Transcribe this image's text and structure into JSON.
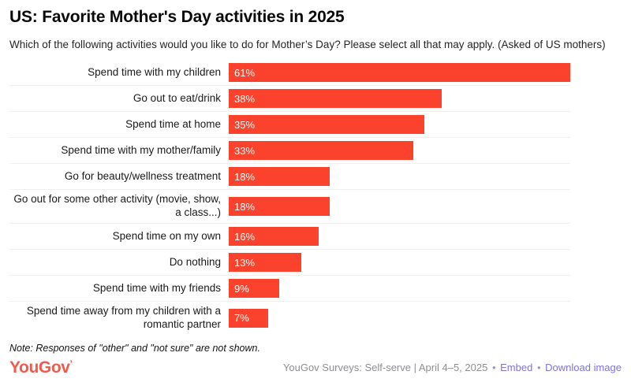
{
  "title": "US: Favorite Mother's Day activities in 2025",
  "subtitle": "Which of the following activities would you like to do for Mother’s Day? Please select all that may apply. (Asked of US mothers)",
  "note": "Note: Responses of \"other\" and \"not sure\" are not shown.",
  "footer": {
    "logo": "YouGov",
    "logo_tick": "’",
    "source_text": "YouGov Surveys: Self-serve | April 4–5, 2025",
    "bullet": "•",
    "links": [
      {
        "label": "Embed"
      },
      {
        "label": "Download image"
      }
    ]
  },
  "colors": {
    "bar": "#fb422c",
    "logo": "#f15b4b",
    "link": "#7d74e0",
    "separator": "#f0f0f0",
    "value_text": "#ffffff",
    "footer_text": "#8e8e93"
  },
  "chart_data": {
    "type": "bar",
    "orientation": "horizontal",
    "title": "US: Favorite Mother's Day activities in 2025",
    "xlabel": "",
    "ylabel": "",
    "xlim": [
      0,
      61
    ],
    "grid": false,
    "legend": "none",
    "value_suffix": "%",
    "categories": [
      "Spend time with my children",
      "Go out to eat/drink",
      "Spend time at home",
      "Spend time with my mother/family",
      "Go for beauty/wellness treatment",
      "Go out for some other activity (movie, show, a class...)",
      "Spend time on my own",
      "Do nothing",
      "Spend time with my friends",
      "Spend time away from my children with a romantic partner"
    ],
    "values": [
      61,
      38,
      35,
      33,
      18,
      18,
      16,
      13,
      9,
      7
    ],
    "value_labels": [
      "61%",
      "38%",
      "35%",
      "33%",
      "18%",
      "18%",
      "16%",
      "13%",
      "9%",
      "7%"
    ]
  }
}
